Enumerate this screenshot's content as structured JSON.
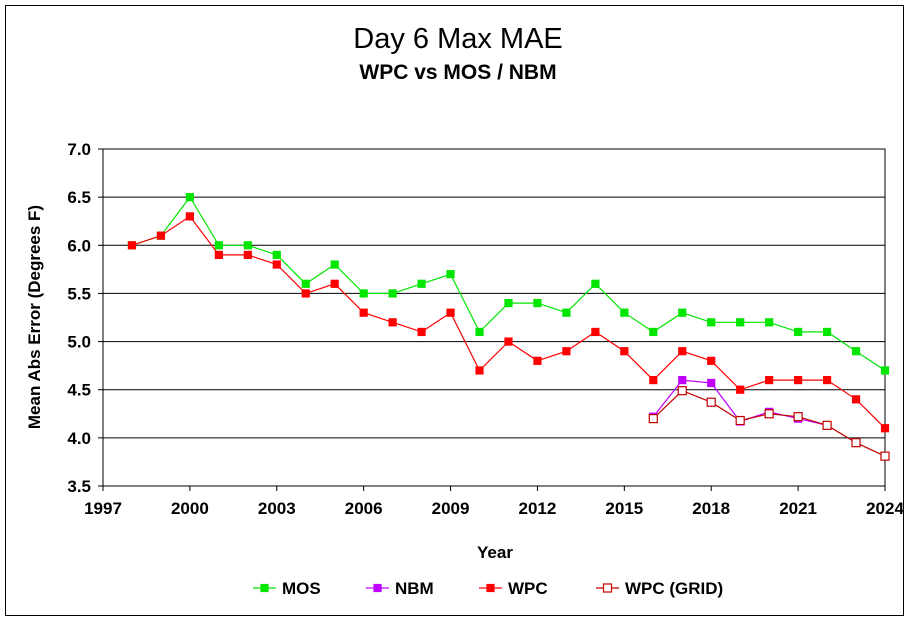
{
  "chart_data": {
    "type": "line",
    "title": "Day 6 Max MAE",
    "subtitle": "WPC vs MOS / NBM",
    "xlabel": "Year",
    "ylabel": "Mean Abs Error (Degrees F)",
    "xlim": [
      1997,
      2024
    ],
    "ylim": [
      3.5,
      7.0
    ],
    "x_ticks": [
      1997,
      2000,
      2003,
      2006,
      2009,
      2012,
      2015,
      2018,
      2021,
      2024
    ],
    "y_ticks": [
      "7.0",
      "6.5",
      "6.0",
      "5.5",
      "5.0",
      "4.5",
      "4.0",
      "3.5"
    ],
    "grid": "horizontal",
    "legend_position": "bottom",
    "series": [
      {
        "name": "MOS",
        "color": "#00e600",
        "marker": "filled-square",
        "x": [
          1998,
          1999,
          2000,
          2001,
          2002,
          2003,
          2004,
          2005,
          2006,
          2007,
          2008,
          2009,
          2010,
          2011,
          2012,
          2013,
          2014,
          2015,
          2016,
          2017,
          2018,
          2019,
          2020,
          2021,
          2022,
          2023,
          2024
        ],
        "y": [
          6.0,
          6.1,
          6.5,
          6.0,
          6.0,
          5.9,
          5.6,
          5.8,
          5.5,
          5.5,
          5.6,
          5.7,
          5.1,
          5.4,
          5.4,
          5.3,
          5.6,
          5.3,
          5.1,
          5.3,
          5.2,
          5.2,
          5.2,
          5.1,
          5.1,
          4.9,
          4.7
        ]
      },
      {
        "name": "NBM",
        "color": "#c000ff",
        "marker": "filled-square",
        "x": [
          2016,
          2017,
          2018,
          2019,
          2020,
          2021,
          2022
        ],
        "y": [
          4.22,
          4.6,
          4.57,
          4.17,
          4.27,
          4.2,
          4.13
        ]
      },
      {
        "name": "WPC",
        "color": "#ff0000",
        "marker": "filled-square",
        "x": [
          1998,
          1999,
          2000,
          2001,
          2002,
          2003,
          2004,
          2005,
          2006,
          2007,
          2008,
          2009,
          2010,
          2011,
          2012,
          2013,
          2014,
          2015,
          2016,
          2017,
          2018,
          2019,
          2020,
          2021,
          2022,
          2023,
          2024
        ],
        "y": [
          6.0,
          6.1,
          6.3,
          5.9,
          5.9,
          5.8,
          5.5,
          5.6,
          5.3,
          5.2,
          5.1,
          5.3,
          4.7,
          5.0,
          4.8,
          4.9,
          5.1,
          4.9,
          4.6,
          4.9,
          4.8,
          4.5,
          4.6,
          4.6,
          4.6,
          4.4,
          4.1
        ]
      },
      {
        "name": "WPC (GRID)",
        "color": "#c00000",
        "marker": "open-square",
        "x": [
          2016,
          2017,
          2018,
          2019,
          2020,
          2021,
          2022,
          2023,
          2024
        ],
        "y": [
          4.2,
          4.49,
          4.37,
          4.18,
          4.25,
          4.22,
          4.13,
          3.95,
          3.81
        ]
      }
    ]
  }
}
